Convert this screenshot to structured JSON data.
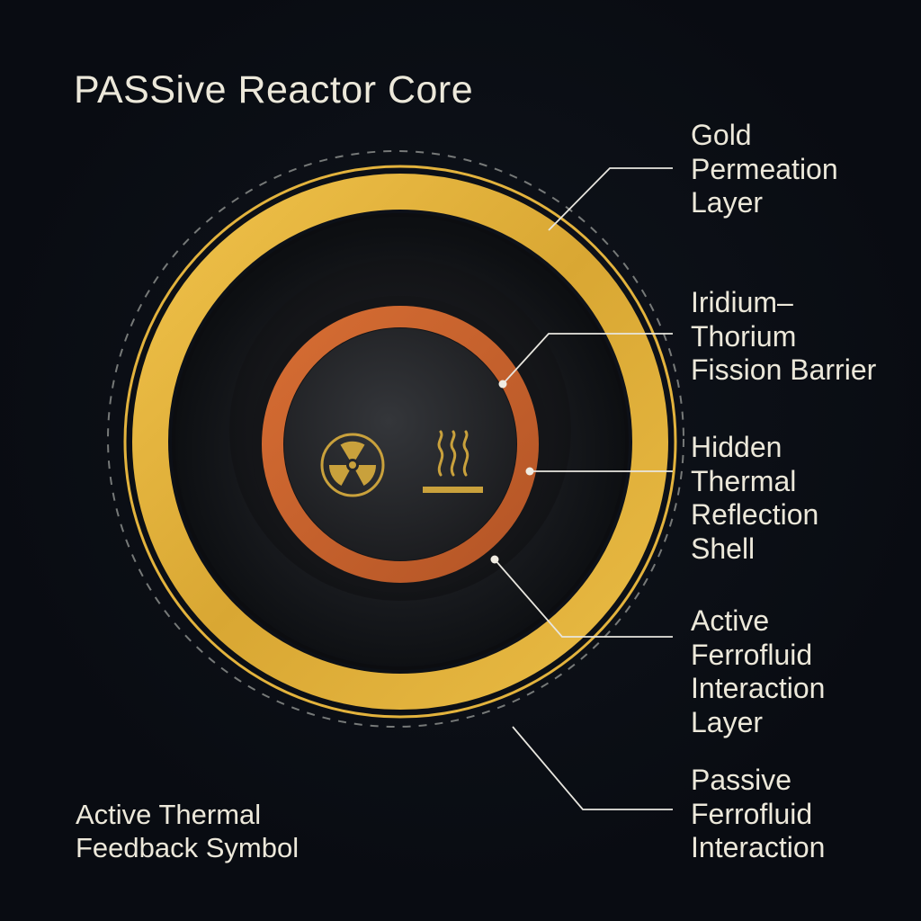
{
  "title": "PASSive Reactor Core",
  "labels": {
    "gold_permeation": [
      "Gold",
      "Permeation",
      "Layer"
    ],
    "iridium_thorium": [
      "Iridium–",
      "Thorium",
      "Fission Barrier"
    ],
    "hidden_thermal": [
      "Hidden",
      "Thermal",
      "Reflection",
      "Shell"
    ],
    "active_ferrofluid": [
      "Active",
      "Ferrofluid",
      "Interaction",
      "Layer"
    ],
    "passive_ferrofluid": [
      "Passive",
      "Ferrofluid",
      "Interaction"
    ],
    "thermal_symbol": [
      "Active Thermal",
      "Feedback Symbol"
    ]
  },
  "colors": {
    "background": "#090c12",
    "gold": "#e3b33d",
    "copper": "#c8612c",
    "text": "#ece8da",
    "leader": "#e8e6df",
    "dashed": "#8a8c8a",
    "inner_dark": "#1f2125"
  },
  "icons": [
    "radiation-icon",
    "heat-icon"
  ]
}
